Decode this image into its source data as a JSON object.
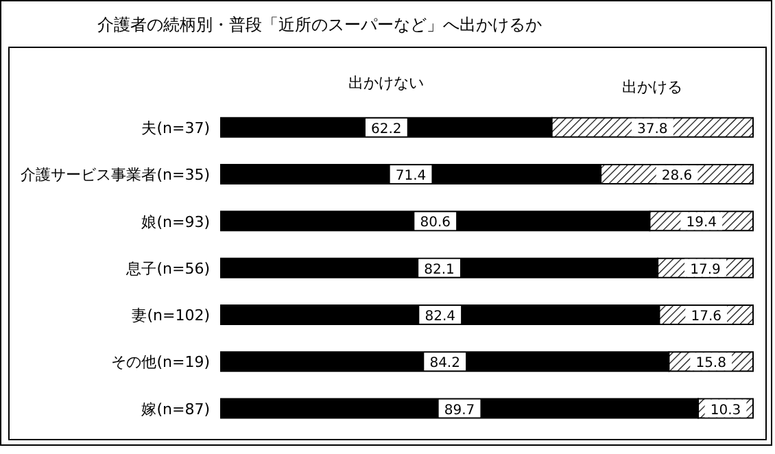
{
  "chart_data": {
    "type": "bar",
    "orientation": "horizontal",
    "stacked": true,
    "title": "介護者の続柄別・普段「近所のスーパーなど」へ出かけるか",
    "categories": [
      "夫(n=37)",
      "介護サービス事業者(n=35)",
      "娘(n=93)",
      "息子(n=56)",
      "妻(n=102)",
      "その他(n=19)",
      "嫁(n=87)"
    ],
    "series": [
      {
        "name": "出かけない",
        "color": "#000000",
        "values": [
          62.2,
          71.4,
          80.6,
          82.1,
          82.4,
          84.2,
          89.7
        ]
      },
      {
        "name": "出かける",
        "color": "#000000",
        "values": [
          37.8,
          28.6,
          19.4,
          17.9,
          17.6,
          15.8,
          10.3
        ]
      }
    ],
    "data_labels": true,
    "legend": "top"
  }
}
